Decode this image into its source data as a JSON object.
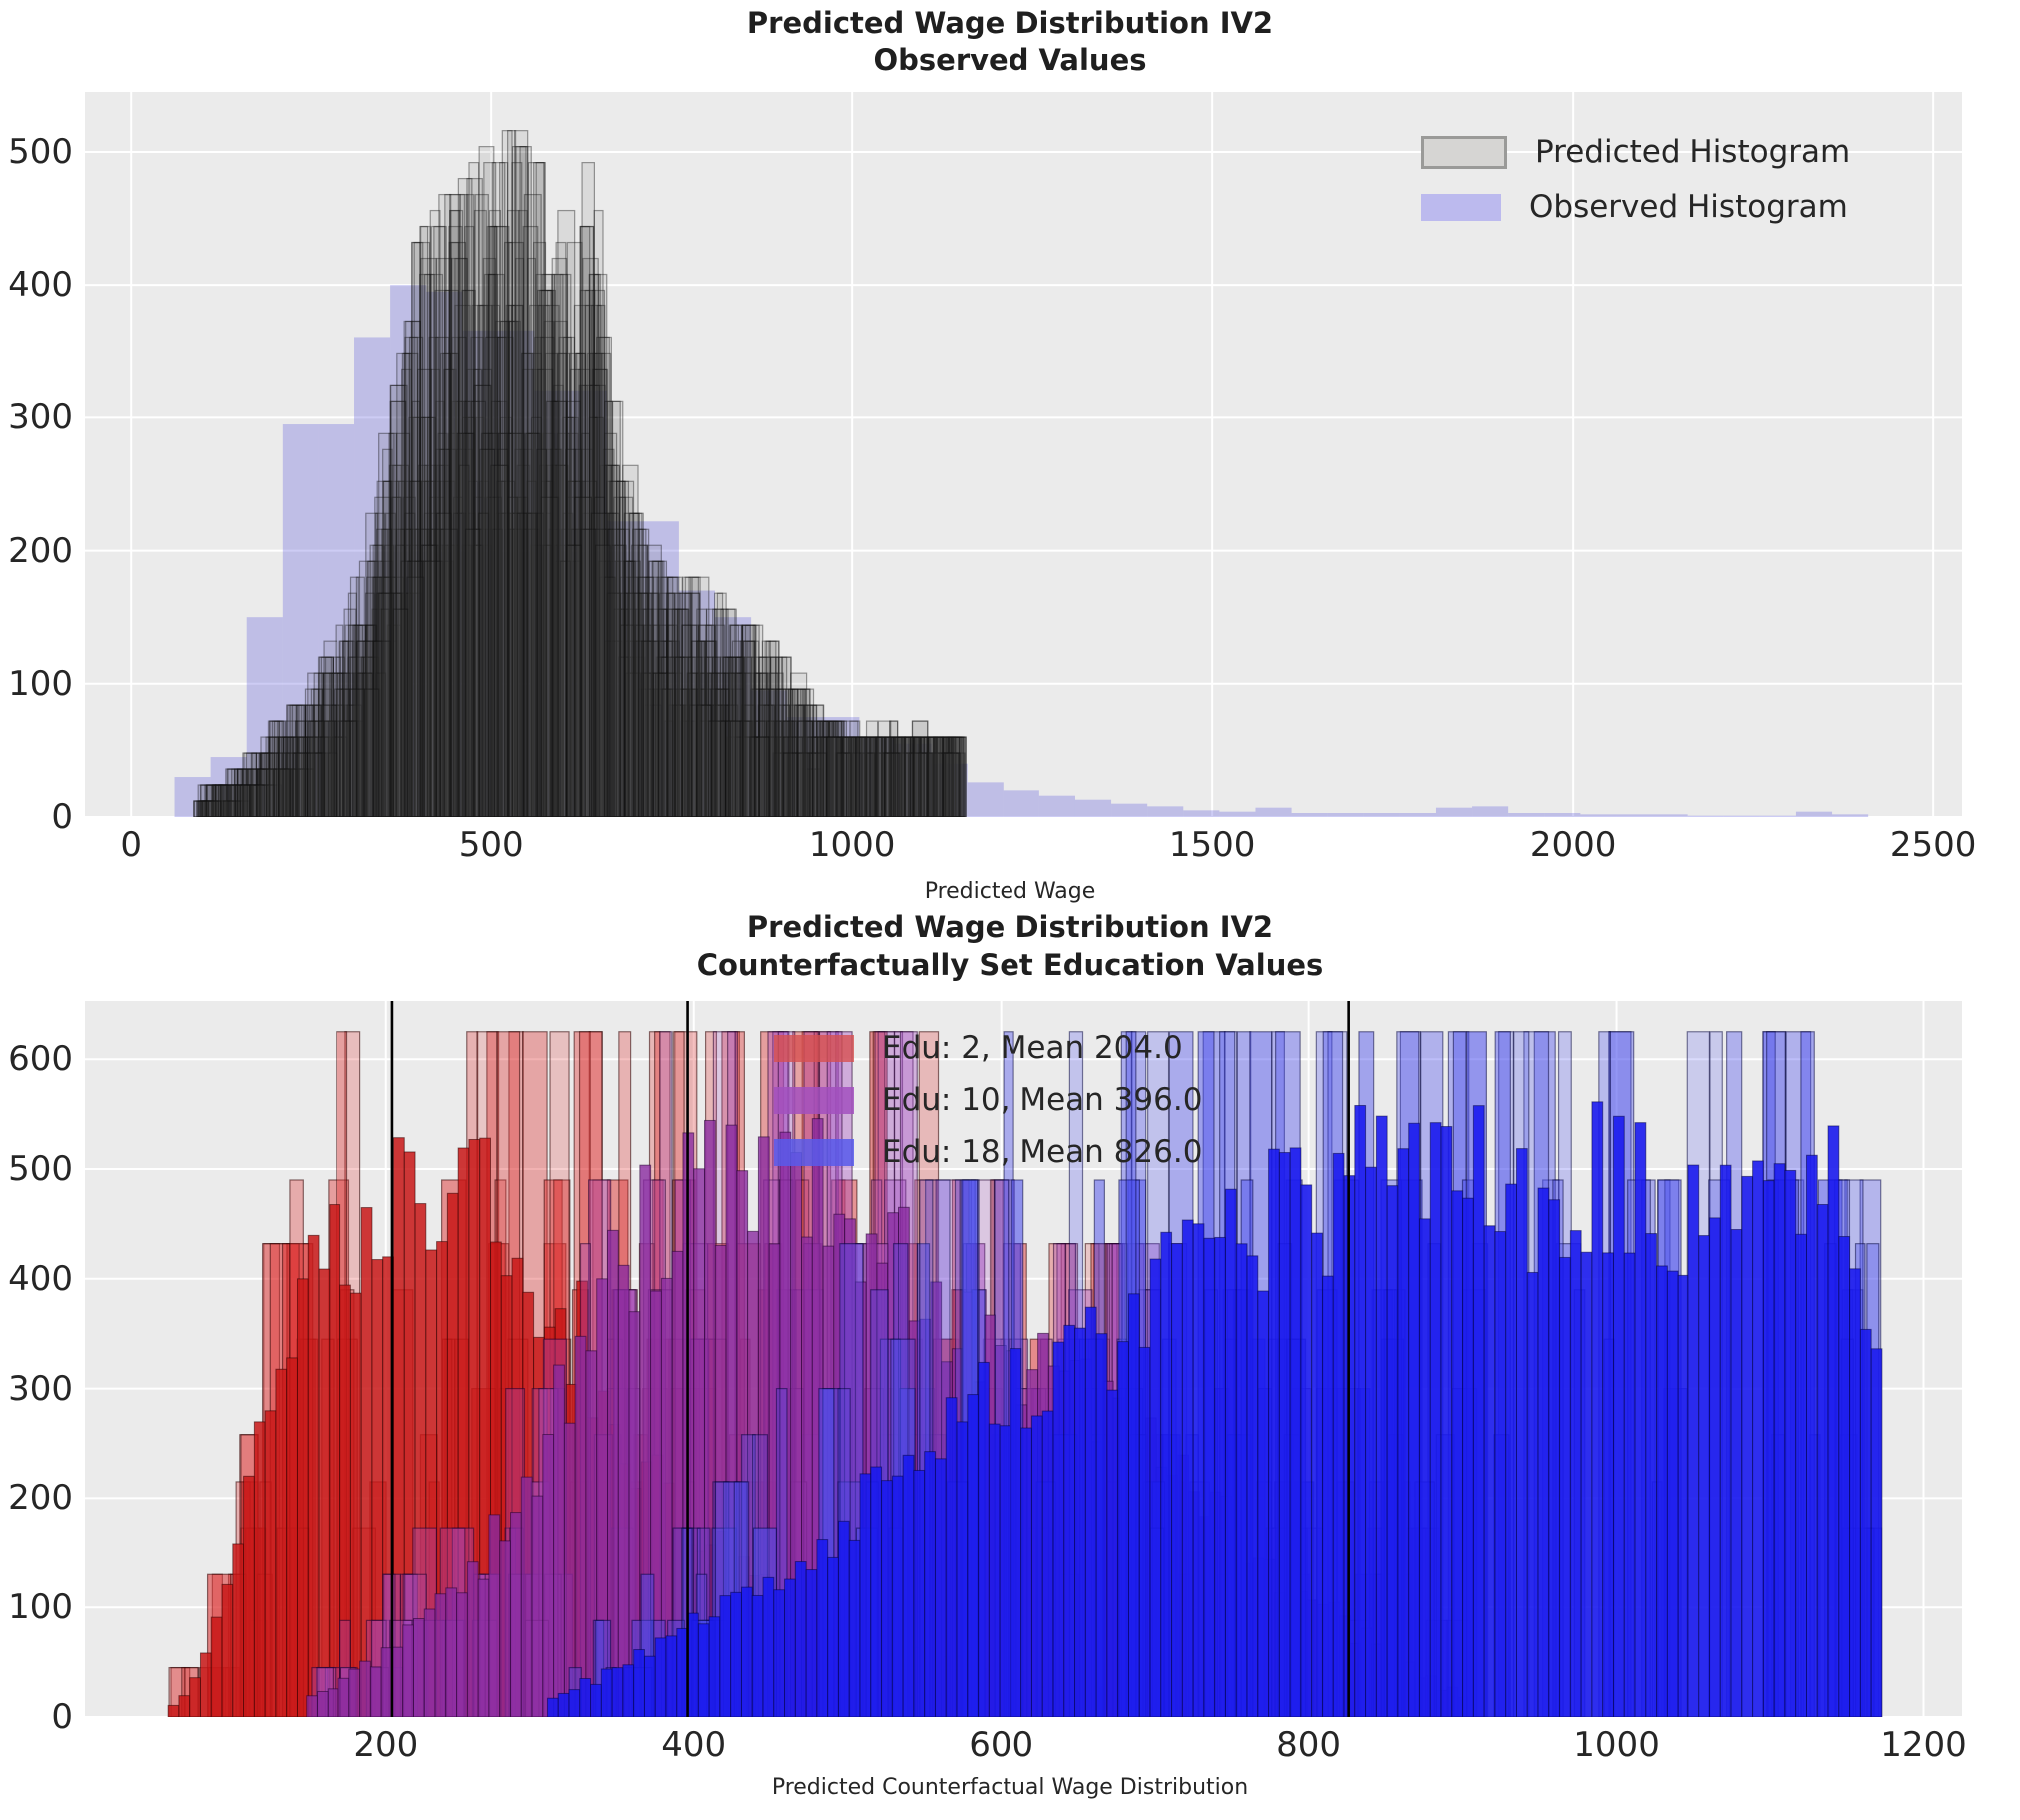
{
  "figure": {
    "background": "#ffffff",
    "axes_background": "#ebebeb",
    "grid_color": "#ffffff",
    "text_color": "#262626"
  },
  "chart_data": [
    {
      "type": "bar",
      "subtype": "overlaid-histogram-ensemble",
      "title": "Predicted Wage Distribution IV2",
      "subtitle": "Observed Values",
      "xlabel": "Predicted Wage",
      "ylabel": "",
      "xlim": [
        -64,
        2540
      ],
      "ylim": [
        0,
        545
      ],
      "xticks": [
        0,
        500,
        1000,
        1500,
        2000,
        2500
      ],
      "yticks": [
        0,
        100,
        200,
        300,
        400,
        500
      ],
      "grid": true,
      "legend_position": "upper right",
      "legend": [
        {
          "label": "Predicted Histogram",
          "fill": "#d6d5d3",
          "edge": "#9a9a98"
        },
        {
          "label": "Observed Histogram",
          "fill": "#bcbaee",
          "edge": "#bcbaee"
        }
      ],
      "observed_histogram": {
        "fill": "rgba(103,99,222,0.33)",
        "bin_start": 60,
        "bin_width": 50,
        "counts": [
          30,
          45,
          150,
          295,
          295,
          360,
          400,
          395,
          365,
          365,
          320,
          320,
          222,
          222,
          170,
          150,
          95,
          75,
          75,
          60,
          55,
          40,
          26,
          20,
          16,
          13,
          10,
          8,
          5,
          4,
          7,
          3,
          3,
          3,
          3,
          7,
          8,
          3,
          3,
          2,
          2,
          2,
          1,
          1,
          1,
          4,
          2
        ]
      },
      "predicted_ensemble": {
        "fill": "rgba(70,70,70,0.10)",
        "edge": "rgba(15,15,15,0.40)",
        "draws": 22,
        "range": [
          85,
          1155
        ],
        "envelope_x": [
          85,
          150,
          200,
          250,
          300,
          350,
          400,
          450,
          500,
          540,
          580,
          615,
          640,
          660,
          700,
          740,
          800,
          850,
          900,
          950,
          990,
          1100,
          1150
        ],
        "envelope_h": [
          15,
          35,
          70,
          95,
          150,
          260,
          440,
          455,
          490,
          515,
          460,
          430,
          515,
          350,
          240,
          185,
          170,
          150,
          120,
          85,
          65,
          65,
          62
        ]
      }
    },
    {
      "type": "bar",
      "subtype": "overlaid-histogram-ensemble",
      "title": "Predicted Wage Distribution IV2",
      "subtitle": "Counterfactually Set Education Values",
      "xlabel": "Predicted Counterfactual Wage Distribution",
      "ylabel": "",
      "xlim": [
        4,
        1225
      ],
      "ylim": [
        0,
        653
      ],
      "xticks": [
        200,
        400,
        600,
        800,
        1000,
        1200
      ],
      "yticks": [
        0,
        100,
        200,
        300,
        400,
        500,
        600
      ],
      "grid": true,
      "mean_line_color": "#000000",
      "height_levels": [
        625,
        490,
        432,
        390,
        345,
        300,
        258,
        215,
        172,
        130,
        88,
        45
      ],
      "groups": [
        {
          "label": "Edu: 2, Mean 204.0",
          "edu": 2,
          "mean": 204.0,
          "fill": "rgba(200,22,22,0.85)",
          "spike_rgb": "222,52,52",
          "edge": "rgba(45,0,0,0.55)",
          "legend_fill": "rgba(214,80,80,0.80)",
          "range": [
            58,
            722
          ],
          "envelope_x": [
            58,
            78,
            98,
            115,
            130,
            150,
            560,
            600,
            650,
            705,
            722
          ],
          "envelope_h": [
            8,
            60,
            180,
            300,
            490,
            625,
            625,
            490,
            432,
            432,
            150
          ],
          "dense_x": [
            58,
            78,
            98,
            120,
            150,
            180,
            210,
            250,
            280,
            320,
            360,
            400,
            450,
            500,
            560,
            620,
            680,
            722
          ],
          "dense_h": [
            5,
            40,
            140,
            300,
            420,
            470,
            490,
            490,
            430,
            370,
            250,
            170,
            110,
            80,
            55,
            35,
            20,
            8
          ]
        },
        {
          "label": "Edu: 10, Mean 396.0",
          "edu": 10,
          "mean": 396.0,
          "fill": "rgba(138,42,160,0.80)",
          "spike_rgb": "162,72,192",
          "edge": "rgba(35,0,45,0.55)",
          "legend_fill": "rgba(162,80,190,0.85)",
          "range": [
            148,
            905
          ],
          "envelope_x": [
            148,
            200,
            250,
            300,
            340,
            370,
            420,
            560,
            620,
            700,
            760,
            820,
            870,
            905
          ],
          "envelope_h": [
            40,
            120,
            210,
            330,
            490,
            625,
            625,
            625,
            432,
            432,
            390,
            320,
            200,
            80
          ],
          "dense_x": [
            148,
            200,
            260,
            320,
            370,
            420,
            470,
            520,
            560,
            610,
            660,
            710,
            760,
            810,
            860,
            905
          ],
          "dense_h": [
            15,
            60,
            140,
            300,
            470,
            490,
            490,
            450,
            400,
            330,
            280,
            230,
            160,
            100,
            50,
            15
          ]
        },
        {
          "label": "Edu: 18, Mean 826.0",
          "edu": 18,
          "mean": 826.0,
          "fill": "rgba(25,25,238,0.90)",
          "spike_rgb": "72,76,238",
          "edge": "rgba(0,0,55,0.50)",
          "legend_fill": "rgba(88,90,235,0.85)",
          "range": [
            305,
            1175
          ],
          "envelope_x": [
            305,
            350,
            400,
            450,
            500,
            550,
            600,
            650,
            1140,
            1175
          ],
          "envelope_h": [
            50,
            110,
            190,
            300,
            420,
            490,
            625,
            625,
            625,
            490
          ],
          "dense_x": [
            305,
            360,
            420,
            480,
            540,
            600,
            650,
            700,
            750,
            800,
            1140,
            1160,
            1175
          ],
          "dense_h": [
            15,
            50,
            100,
            160,
            230,
            300,
            340,
            390,
            440,
            490,
            490,
            440,
            300
          ]
        }
      ]
    }
  ]
}
